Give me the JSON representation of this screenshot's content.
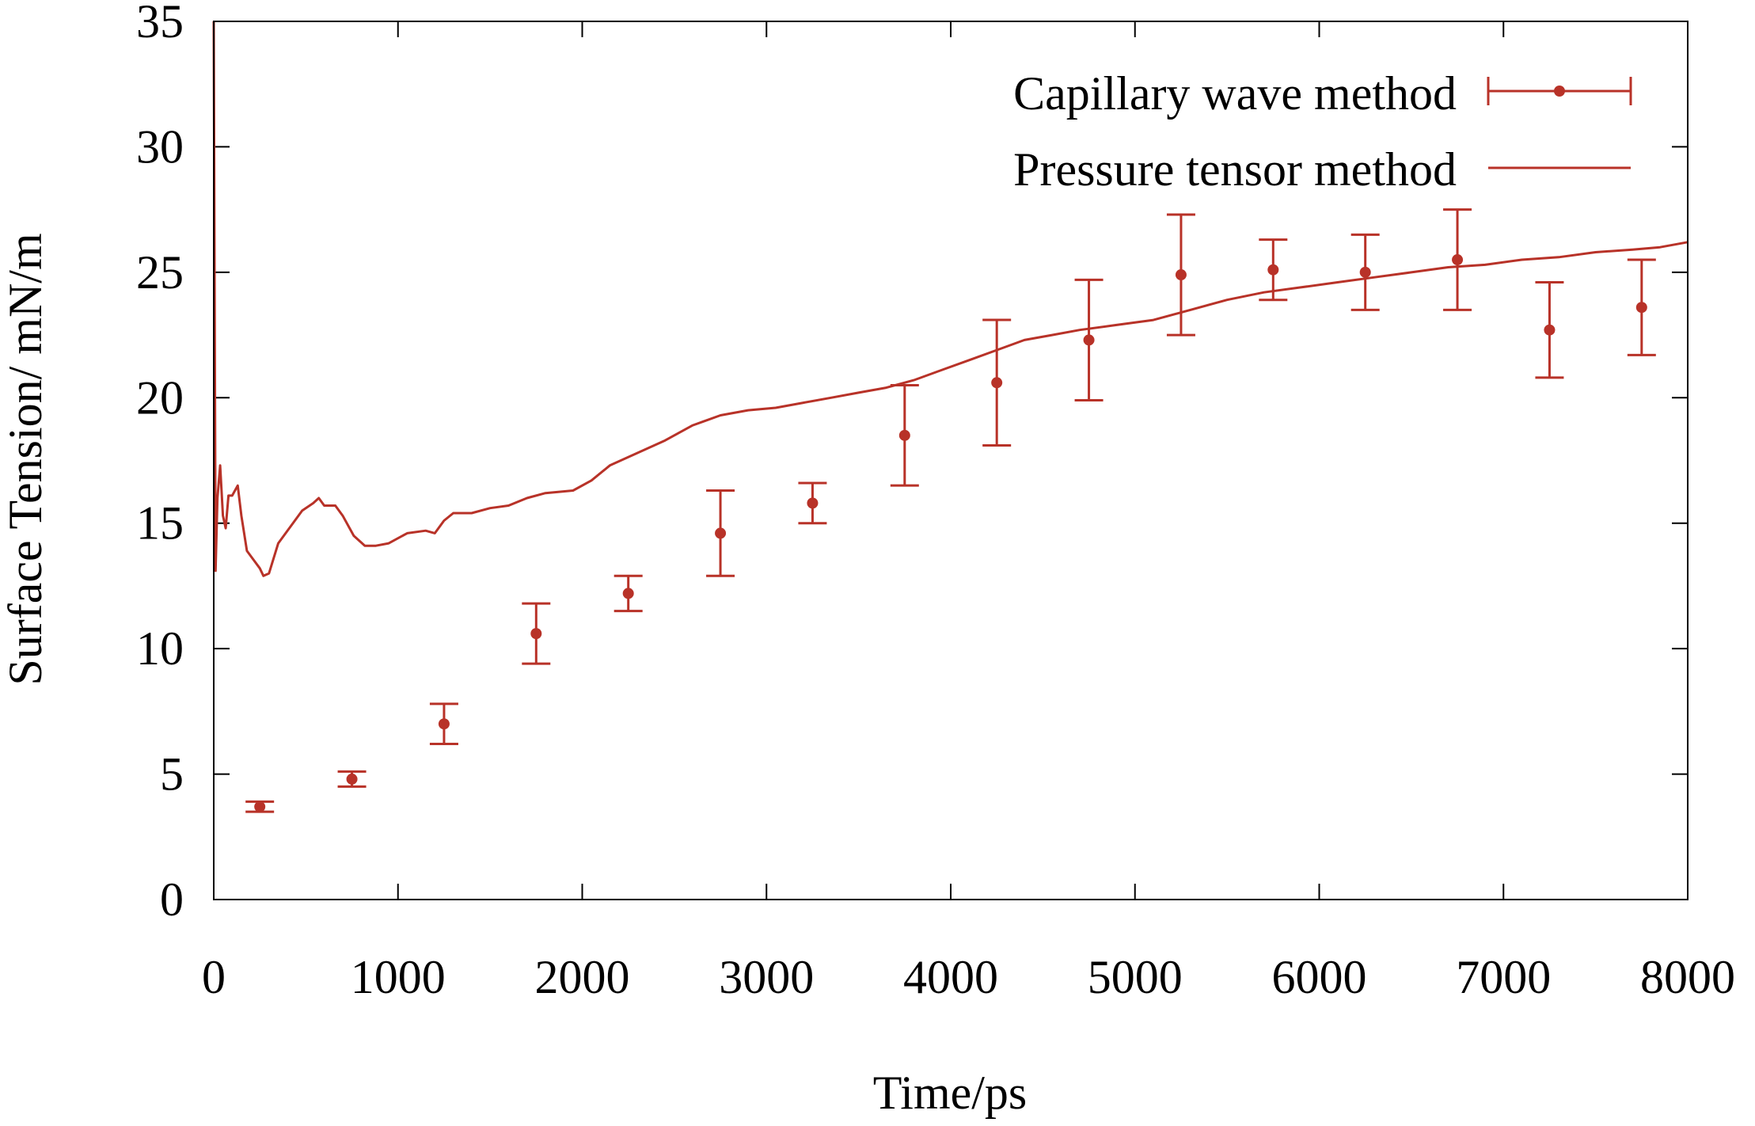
{
  "colors": {
    "series": "#b83228",
    "axis": "#000000",
    "background": "#ffffff"
  },
  "chart_data": {
    "type": "scatter",
    "title": "",
    "xlabel": "Time/ps",
    "ylabel": "Surface Tension/ mN/m",
    "xlim": [
      0,
      8000
    ],
    "ylim": [
      0,
      35
    ],
    "xticks": [
      0,
      1000,
      2000,
      3000,
      4000,
      5000,
      6000,
      7000,
      8000
    ],
    "yticks": [
      0,
      5,
      10,
      15,
      20,
      25,
      30,
      35
    ],
    "xtick_labels": [
      "0",
      "1000",
      "2000",
      "3000",
      "4000",
      "5000",
      "6000",
      "7000",
      "8000"
    ],
    "ytick_labels": [
      "0",
      "5",
      "10",
      "15",
      "20",
      "25",
      "30",
      "35"
    ],
    "legend_position": "top-right",
    "series": [
      {
        "name": "Capillary wave method",
        "kind": "errorbar",
        "points": [
          {
            "x": 250,
            "y": 3.7,
            "err": 0.2
          },
          {
            "x": 750,
            "y": 4.8,
            "err": 0.3
          },
          {
            "x": 1250,
            "y": 7.0,
            "err": 0.8
          },
          {
            "x": 1750,
            "y": 10.6,
            "err": 1.2
          },
          {
            "x": 2250,
            "y": 12.2,
            "err": 0.7
          },
          {
            "x": 2750,
            "y": 14.6,
            "err": 1.7
          },
          {
            "x": 3250,
            "y": 15.8,
            "err": 0.8
          },
          {
            "x": 3750,
            "y": 18.5,
            "err": 2.0
          },
          {
            "x": 4250,
            "y": 20.6,
            "err": 2.5
          },
          {
            "x": 4750,
            "y": 22.3,
            "err": 2.4
          },
          {
            "x": 5250,
            "y": 24.9,
            "err": 2.4
          },
          {
            "x": 5750,
            "y": 25.1,
            "err": 1.2
          },
          {
            "x": 6250,
            "y": 25.0,
            "err": 1.5
          },
          {
            "x": 6750,
            "y": 25.5,
            "err": 2.0
          },
          {
            "x": 7250,
            "y": 22.7,
            "err": 1.9
          },
          {
            "x": 7750,
            "y": 23.6,
            "err": 1.9
          }
        ]
      },
      {
        "name": "Pressure tensor method",
        "kind": "line",
        "points": [
          [
            0,
            35
          ],
          [
            10,
            13.1
          ],
          [
            20,
            16.0
          ],
          [
            35,
            17.3
          ],
          [
            50,
            15.3
          ],
          [
            65,
            14.8
          ],
          [
            80,
            16.1
          ],
          [
            100,
            16.1
          ],
          [
            130,
            16.5
          ],
          [
            150,
            15.3
          ],
          [
            180,
            13.9
          ],
          [
            210,
            13.6
          ],
          [
            250,
            13.2
          ],
          [
            270,
            12.9
          ],
          [
            300,
            13.0
          ],
          [
            350,
            14.2
          ],
          [
            420,
            14.9
          ],
          [
            480,
            15.5
          ],
          [
            540,
            15.8
          ],
          [
            570,
            16.0
          ],
          [
            600,
            15.7
          ],
          [
            660,
            15.7
          ],
          [
            700,
            15.3
          ],
          [
            760,
            14.5
          ],
          [
            820,
            14.1
          ],
          [
            880,
            14.1
          ],
          [
            950,
            14.2
          ],
          [
            1050,
            14.6
          ],
          [
            1150,
            14.7
          ],
          [
            1200,
            14.6
          ],
          [
            1250,
            15.1
          ],
          [
            1300,
            15.4
          ],
          [
            1400,
            15.4
          ],
          [
            1500,
            15.6
          ],
          [
            1600,
            15.7
          ],
          [
            1700,
            16.0
          ],
          [
            1800,
            16.2
          ],
          [
            1950,
            16.3
          ],
          [
            2050,
            16.7
          ],
          [
            2150,
            17.3
          ],
          [
            2300,
            17.8
          ],
          [
            2450,
            18.3
          ],
          [
            2600,
            18.9
          ],
          [
            2750,
            19.3
          ],
          [
            2900,
            19.5
          ],
          [
            3050,
            19.6
          ],
          [
            3200,
            19.8
          ],
          [
            3350,
            20.0
          ],
          [
            3500,
            20.2
          ],
          [
            3650,
            20.4
          ],
          [
            3800,
            20.7
          ],
          [
            3950,
            21.1
          ],
          [
            4100,
            21.5
          ],
          [
            4250,
            21.9
          ],
          [
            4400,
            22.3
          ],
          [
            4550,
            22.5
          ],
          [
            4700,
            22.7
          ],
          [
            4900,
            22.9
          ],
          [
            5100,
            23.1
          ],
          [
            5300,
            23.5
          ],
          [
            5500,
            23.9
          ],
          [
            5700,
            24.2
          ],
          [
            5900,
            24.4
          ],
          [
            6100,
            24.6
          ],
          [
            6300,
            24.8
          ],
          [
            6500,
            25.0
          ],
          [
            6700,
            25.2
          ],
          [
            6900,
            25.3
          ],
          [
            7100,
            25.5
          ],
          [
            7300,
            25.6
          ],
          [
            7500,
            25.8
          ],
          [
            7700,
            25.9
          ],
          [
            7850,
            26.0
          ],
          [
            8000,
            26.2
          ]
        ]
      }
    ]
  }
}
